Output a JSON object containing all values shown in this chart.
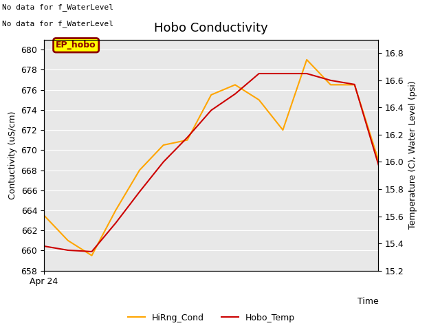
{
  "title": "Hobo Conductivity",
  "xlabel": "Time",
  "ylabel_left": "Contuctivity (uS/cm)",
  "ylabel_right": "Temperature (C), Water Level (psi)",
  "annotation_line1": "No data for f_WaterLevel",
  "annotation_line2": "No data for f_WaterLevel",
  "ep_hobo_label": "EP_hobo",
  "hirng_cond_x": [
    0,
    1,
    2,
    3,
    4,
    5,
    6,
    7,
    8,
    9,
    10,
    11,
    12,
    13,
    14
  ],
  "hirng_cond_y": [
    663.5,
    661.0,
    659.5,
    664.0,
    668.0,
    670.5,
    671.0,
    675.5,
    676.5,
    675.0,
    672.0,
    679.0,
    676.5,
    676.5,
    669.0
  ],
  "hobo_temp_x": [
    0,
    1,
    2,
    3,
    4,
    5,
    6,
    7,
    8,
    9,
    10,
    11,
    12,
    13,
    14
  ],
  "hobo_temp_y": [
    15.38,
    15.35,
    15.34,
    15.55,
    15.78,
    16.0,
    16.18,
    16.38,
    16.5,
    16.65,
    16.65,
    16.65,
    16.6,
    16.57,
    15.98
  ],
  "ylim_left": [
    658,
    681
  ],
  "ylim_right": [
    15.2,
    16.9
  ],
  "yticks_left": [
    658,
    660,
    662,
    664,
    666,
    668,
    670,
    672,
    674,
    676,
    678,
    680
  ],
  "yticks_right": [
    15.2,
    15.4,
    15.6,
    15.8,
    16.0,
    16.2,
    16.4,
    16.6,
    16.8
  ],
  "xlim": [
    0,
    14
  ],
  "xtick_pos": 0,
  "xtick_label": "Apr 24",
  "hirng_color": "#FFA500",
  "hobo_color": "#CC0000",
  "legend_hirng": "HiRng_Cond",
  "legend_hobo": "Hobo_Temp",
  "bg_color": "#E8E8E8",
  "title_fontsize": 13,
  "label_fontsize": 9,
  "tick_fontsize": 9,
  "annot_fontsize": 8,
  "ep_fontsize": 9
}
